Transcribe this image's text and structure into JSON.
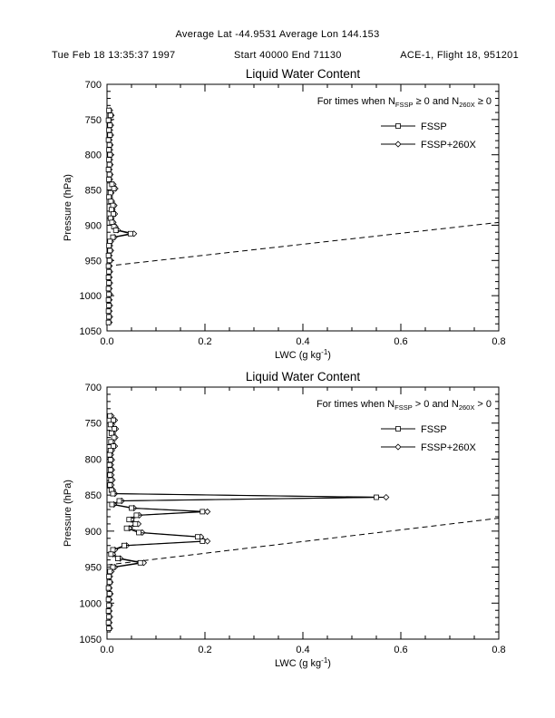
{
  "header": {
    "line1": "Average Lat -44.9531   Average Lon 144.153",
    "datetime": "Tue Feb 18 13:35:37 1997",
    "start_end": "Start 40000  End 71130",
    "flight": "ACE-1, Flight 18, 951201"
  },
  "chart_data": [
    {
      "type": "line",
      "title": "Liquid Water Content",
      "ylabel": "Pressure (hPa)",
      "xlabel": {
        "pre": "LWC (g kg",
        "sup": "-1",
        "post": ")"
      },
      "xlim": [
        0.0,
        0.8
      ],
      "ylim": [
        700,
        1050
      ],
      "y_inverted": true,
      "grid": false,
      "xticks": [
        0.0,
        0.2,
        0.4,
        0.6,
        0.8
      ],
      "xtick_labels": [
        "0.0",
        "0.2",
        "0.4",
        "0.6",
        "0.8"
      ],
      "yticks": [
        700,
        750,
        800,
        850,
        900,
        950,
        1000,
        1050
      ],
      "ytick_labels": [
        "700",
        "750",
        "800",
        "850",
        "900",
        "950",
        "1000",
        "1050"
      ],
      "legend_position": "top-right-inside",
      "condition": [
        {
          "t": "For times when N"
        },
        {
          "t": "FSSP",
          "sub": true
        },
        {
          "t": " ≥ 0 and N"
        },
        {
          "t": "260X",
          "sub": true
        },
        {
          "t": " ≥ 0"
        }
      ],
      "series": [
        {
          "name": "FSSP",
          "marker": "square",
          "points_p_lwc": [
            [
              737,
              0.004
            ],
            [
              744,
              0.007
            ],
            [
              751,
              0.003
            ],
            [
              758,
              0.006
            ],
            [
              765,
              0.004
            ],
            [
              772,
              0.006
            ],
            [
              779,
              0.003
            ],
            [
              786,
              0.005
            ],
            [
              793,
              0.004
            ],
            [
              800,
              0.006
            ],
            [
              807,
              0.004
            ],
            [
              814,
              0.005
            ],
            [
              821,
              0.003
            ],
            [
              828,
              0.005
            ],
            [
              835,
              0.004
            ],
            [
              842,
              0.01
            ],
            [
              848,
              0.014
            ],
            [
              854,
              0.007
            ],
            [
              860,
              0.004
            ],
            [
              866,
              0.008
            ],
            [
              872,
              0.012
            ],
            [
              878,
              0.009
            ],
            [
              884,
              0.013
            ],
            [
              890,
              0.007
            ],
            [
              896,
              0.01
            ],
            [
              902,
              0.014
            ],
            [
              907,
              0.018
            ],
            [
              912,
              0.048
            ],
            [
              917,
              0.012
            ],
            [
              923,
              0.006
            ],
            [
              929,
              0.004
            ],
            [
              936,
              0.006
            ],
            [
              943,
              0.003
            ],
            [
              950,
              0.005
            ],
            [
              958,
              0.003
            ],
            [
              966,
              0.004
            ],
            [
              974,
              0.003
            ],
            [
              982,
              0.004
            ],
            [
              990,
              0.003
            ],
            [
              998,
              0.004
            ],
            [
              1006,
              0.003
            ],
            [
              1014,
              0.004
            ],
            [
              1022,
              0.003
            ],
            [
              1030,
              0.004
            ],
            [
              1038,
              0.003
            ]
          ]
        },
        {
          "name": "FSSP+260X",
          "marker": "diamond",
          "points_p_lwc": [
            [
              737,
              0.006
            ],
            [
              744,
              0.009
            ],
            [
              751,
              0.005
            ],
            [
              758,
              0.008
            ],
            [
              765,
              0.006
            ],
            [
              772,
              0.008
            ],
            [
              779,
              0.005
            ],
            [
              786,
              0.007
            ],
            [
              793,
              0.006
            ],
            [
              800,
              0.008
            ],
            [
              807,
              0.006
            ],
            [
              814,
              0.007
            ],
            [
              821,
              0.005
            ],
            [
              828,
              0.007
            ],
            [
              835,
              0.006
            ],
            [
              842,
              0.013
            ],
            [
              848,
              0.017
            ],
            [
              854,
              0.009
            ],
            [
              860,
              0.006
            ],
            [
              866,
              0.01
            ],
            [
              872,
              0.015
            ],
            [
              878,
              0.011
            ],
            [
              884,
              0.016
            ],
            [
              890,
              0.009
            ],
            [
              896,
              0.013
            ],
            [
              902,
              0.017
            ],
            [
              907,
              0.022
            ],
            [
              912,
              0.055
            ],
            [
              917,
              0.015
            ],
            [
              923,
              0.008
            ],
            [
              929,
              0.006
            ],
            [
              936,
              0.008
            ],
            [
              943,
              0.005
            ],
            [
              950,
              0.007
            ],
            [
              958,
              0.005
            ],
            [
              966,
              0.006
            ],
            [
              974,
              0.005
            ],
            [
              982,
              0.006
            ],
            [
              990,
              0.005
            ],
            [
              998,
              0.006
            ],
            [
              1006,
              0.005
            ],
            [
              1014,
              0.006
            ],
            [
              1022,
              0.005
            ],
            [
              1030,
              0.006
            ],
            [
              1038,
              0.005
            ]
          ]
        }
      ],
      "dashed_reference": {
        "points_p_lwc": [
          [
            958,
            0.0
          ],
          [
            896,
            0.8
          ]
        ]
      }
    },
    {
      "type": "line",
      "title": "Liquid Water Content",
      "ylabel": "Pressure (hPa)",
      "xlabel": {
        "pre": "LWC (g kg",
        "sup": "-1",
        "post": ")"
      },
      "xlim": [
        0.0,
        0.8
      ],
      "ylim": [
        700,
        1050
      ],
      "y_inverted": true,
      "grid": false,
      "xticks": [
        0.0,
        0.2,
        0.4,
        0.6,
        0.8
      ],
      "xtick_labels": [
        "0.0",
        "0.2",
        "0.4",
        "0.6",
        "0.8"
      ],
      "yticks": [
        700,
        750,
        800,
        850,
        900,
        950,
        1000,
        1050
      ],
      "ytick_labels": [
        "700",
        "750",
        "800",
        "850",
        "900",
        "950",
        "1000",
        "1050"
      ],
      "legend_position": "top-right-inside",
      "condition": [
        {
          "t": "For times when N"
        },
        {
          "t": "FSSP",
          "sub": true
        },
        {
          "t": " > 0 and N"
        },
        {
          "t": "260X",
          "sub": true
        },
        {
          "t": " > 0"
        }
      ],
      "series": [
        {
          "name": "FSSP",
          "marker": "square",
          "points_p_lwc": [
            [
              740,
              0.006
            ],
            [
              746,
              0.013
            ],
            [
              752,
              0.007
            ],
            [
              758,
              0.015
            ],
            [
              764,
              0.009
            ],
            [
              770,
              0.014
            ],
            [
              776,
              0.008
            ],
            [
              782,
              0.013
            ],
            [
              788,
              0.007
            ],
            [
              794,
              0.005
            ],
            [
              801,
              0.007
            ],
            [
              808,
              0.005
            ],
            [
              815,
              0.007
            ],
            [
              822,
              0.006
            ],
            [
              829,
              0.008
            ],
            [
              836,
              0.006
            ],
            [
              843,
              0.009
            ],
            [
              848,
              0.012
            ],
            [
              853,
              0.55
            ],
            [
              858,
              0.025
            ],
            [
              863,
              0.01
            ],
            [
              868,
              0.05
            ],
            [
              873,
              0.195
            ],
            [
              878,
              0.06
            ],
            [
              884,
              0.045
            ],
            [
              890,
              0.058
            ],
            [
              896,
              0.04
            ],
            [
              902,
              0.065
            ],
            [
              908,
              0.185
            ],
            [
              914,
              0.195
            ],
            [
              920,
              0.035
            ],
            [
              926,
              0.012
            ],
            [
              932,
              0.008
            ],
            [
              938,
              0.022
            ],
            [
              944,
              0.068
            ],
            [
              950,
              0.012
            ],
            [
              956,
              0.006
            ],
            [
              963,
              0.004
            ],
            [
              971,
              0.005
            ],
            [
              979,
              0.003
            ],
            [
              987,
              0.005
            ],
            [
              995,
              0.003
            ],
            [
              1003,
              0.004
            ],
            [
              1011,
              0.003
            ],
            [
              1019,
              0.004
            ],
            [
              1027,
              0.003
            ],
            [
              1035,
              0.004
            ]
          ]
        },
        {
          "name": "FSSP+260X",
          "marker": "diamond",
          "points_p_lwc": [
            [
              740,
              0.009
            ],
            [
              746,
              0.016
            ],
            [
              752,
              0.01
            ],
            [
              758,
              0.018
            ],
            [
              764,
              0.012
            ],
            [
              770,
              0.017
            ],
            [
              776,
              0.011
            ],
            [
              782,
              0.016
            ],
            [
              788,
              0.01
            ],
            [
              794,
              0.008
            ],
            [
              801,
              0.01
            ],
            [
              808,
              0.008
            ],
            [
              815,
              0.01
            ],
            [
              822,
              0.009
            ],
            [
              829,
              0.011
            ],
            [
              836,
              0.009
            ],
            [
              843,
              0.012
            ],
            [
              848,
              0.016
            ],
            [
              853,
              0.57
            ],
            [
              858,
              0.03
            ],
            [
              863,
              0.014
            ],
            [
              868,
              0.055
            ],
            [
              873,
              0.205
            ],
            [
              878,
              0.066
            ],
            [
              884,
              0.05
            ],
            [
              890,
              0.064
            ],
            [
              896,
              0.046
            ],
            [
              902,
              0.072
            ],
            [
              908,
              0.192
            ],
            [
              914,
              0.205
            ],
            [
              920,
              0.04
            ],
            [
              926,
              0.016
            ],
            [
              932,
              0.012
            ],
            [
              938,
              0.027
            ],
            [
              944,
              0.075
            ],
            [
              950,
              0.016
            ],
            [
              956,
              0.009
            ],
            [
              963,
              0.006
            ],
            [
              971,
              0.007
            ],
            [
              979,
              0.005
            ],
            [
              987,
              0.007
            ],
            [
              995,
              0.005
            ],
            [
              1003,
              0.006
            ],
            [
              1011,
              0.005
            ],
            [
              1019,
              0.006
            ],
            [
              1027,
              0.005
            ],
            [
              1035,
              0.006
            ]
          ]
        }
      ],
      "dashed_reference": {
        "points_p_lwc": [
          [
            947,
            0.0
          ],
          [
            882,
            0.8
          ]
        ]
      }
    }
  ],
  "colors": {
    "foreground": "#000000",
    "background": "#ffffff"
  }
}
